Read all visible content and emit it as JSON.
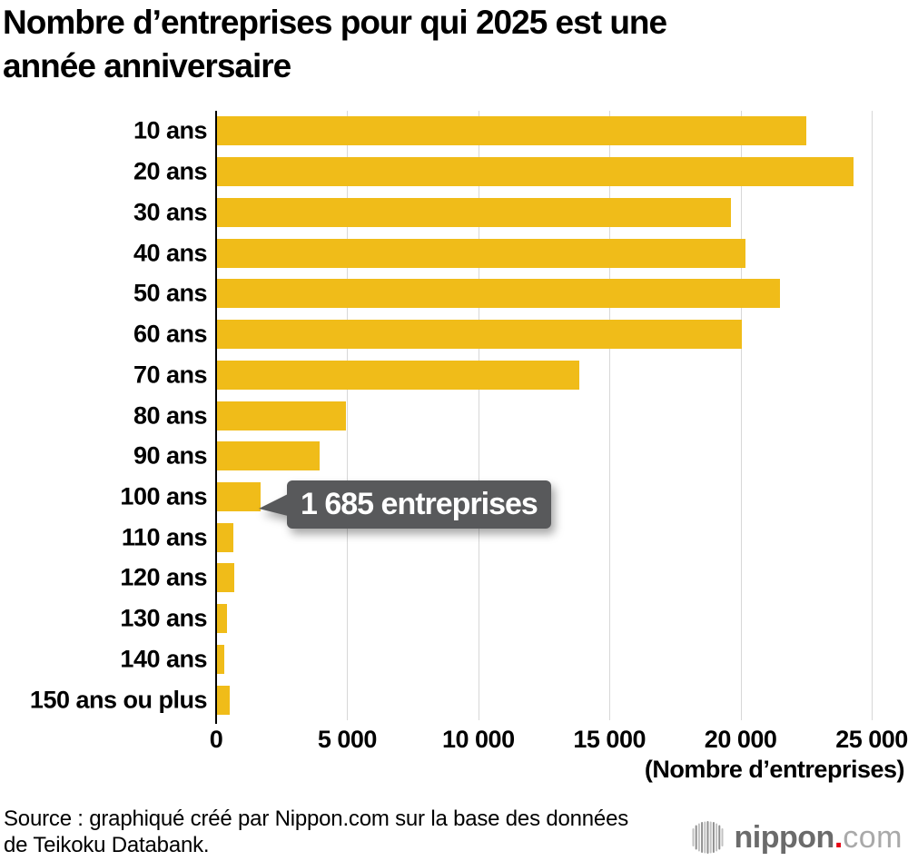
{
  "header": {
    "title_lines": [
      "Nombre d’entreprises pour qui 2025 est une",
      "année anniversaire"
    ]
  },
  "chart_data": {
    "type": "bar",
    "orientation": "horizontal",
    "title": "Nombre d’entreprises pour qui 2025 est une année anniversaire",
    "categories": [
      "10 ans",
      "20 ans",
      "30 ans",
      "40 ans",
      "50 ans",
      "60 ans",
      "70 ans",
      "80 ans",
      "90 ans",
      "100 ans",
      "110 ans",
      "120 ans",
      "130 ans",
      "140 ans",
      "150 ans ou plus"
    ],
    "values": [
      22500,
      24300,
      19650,
      20200,
      21500,
      20050,
      13850,
      4950,
      3950,
      1685,
      650,
      700,
      420,
      300,
      520
    ],
    "annotation": {
      "target_category": "100 ans",
      "target_value": 1685,
      "label": "1 685 entreprises"
    },
    "xlim": [
      0,
      25000
    ],
    "xticks": [
      0,
      5000,
      10000,
      15000,
      20000,
      25000
    ],
    "xtick_labels": [
      "0",
      "5 000",
      "10 000",
      "15 000",
      "20 000",
      "25 000"
    ],
    "xlabel": "(Nombre d’entreprises)",
    "grid": true,
    "legend_position": "none",
    "bar_color": "#F0BC19",
    "grid_color": "#D7D7D7",
    "axis_color": "#000000",
    "annotation_bg_color": "#58595B",
    "annotation_text_color": "#FFFFFF"
  },
  "footer": {
    "source_lines": [
      "Source : graphiqué créé par Nippon.com sur la base des données",
      "de Teikoku Databank."
    ],
    "logo": {
      "name": "nippon.com",
      "text_main": "nippon",
      "text_dot": ".",
      "text_tld": "com",
      "dot_color": "#E60012",
      "mark_icon": "soundwave-sphere-icon"
    }
  }
}
